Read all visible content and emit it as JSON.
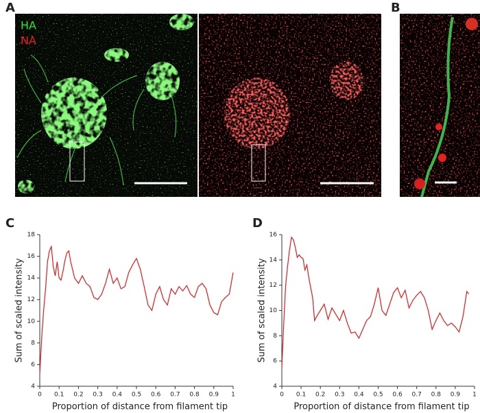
{
  "panel_labels": [
    "A",
    "B",
    "C",
    "D"
  ],
  "channel_labels": [
    "HA",
    "NA"
  ],
  "chart_data": [
    {
      "type": "line",
      "x_label": "Proportion of distance from filament tip",
      "y_label": "Sum of scaled intensity",
      "xlim": [
        0,
        1
      ],
      "ylim": [
        4,
        18
      ],
      "xticks": [
        0,
        0.1,
        0.2,
        0.3,
        0.4,
        0.5,
        0.6,
        0.7,
        0.8,
        0.9,
        1
      ],
      "yticks": [
        4,
        6,
        8,
        10,
        12,
        14,
        16,
        18
      ],
      "x": [
        0,
        0.01,
        0.02,
        0.03,
        0.04,
        0.05,
        0.06,
        0.07,
        0.08,
        0.09,
        0.1,
        0.11,
        0.12,
        0.13,
        0.14,
        0.15,
        0.16,
        0.18,
        0.2,
        0.22,
        0.24,
        0.26,
        0.28,
        0.3,
        0.32,
        0.34,
        0.36,
        0.38,
        0.4,
        0.42,
        0.44,
        0.46,
        0.48,
        0.5,
        0.52,
        0.54,
        0.56,
        0.58,
        0.6,
        0.62,
        0.64,
        0.66,
        0.68,
        0.7,
        0.72,
        0.74,
        0.76,
        0.78,
        0.8,
        0.82,
        0.84,
        0.86,
        0.88,
        0.9,
        0.92,
        0.94,
        0.96,
        0.98,
        1
      ],
      "series": [
        {
          "color": "#e31a1c",
          "values": [
            5.2,
            8.5,
            11,
            13,
            15.5,
            16.5,
            16.9,
            15,
            14.2,
            15.5,
            14,
            13.8,
            14.6,
            15.6,
            16.3,
            16.5,
            15.5,
            14,
            13.5,
            14.2,
            13.5,
            13.2,
            12.2,
            12,
            12.5,
            13.5,
            14.8,
            13.5,
            14,
            13,
            13.2,
            14.5,
            15.2,
            15.8,
            14.8,
            13.2,
            11.5,
            11,
            12.5,
            13.2,
            12,
            11.5,
            13,
            12.5,
            13.2,
            12.8,
            13.3,
            12.5,
            12.2,
            13.2,
            13.5,
            13,
            11.5,
            10.8,
            10.6,
            11.8,
            12.2,
            12.5,
            14.5
          ]
        }
      ]
    },
    {
      "type": "line",
      "x_label": "Proportion of distance from filament tip",
      "y_label": "Sum of scaled intensity",
      "xlim": [
        0,
        1
      ],
      "ylim": [
        4,
        16
      ],
      "xticks": [
        0,
        0.1,
        0.2,
        0.3,
        0.4,
        0.5,
        0.6,
        0.7,
        0.8,
        0.9,
        1
      ],
      "yticks": [
        4,
        6,
        8,
        10,
        12,
        14,
        16
      ],
      "x": [
        0,
        0.01,
        0.02,
        0.03,
        0.04,
        0.05,
        0.06,
        0.07,
        0.08,
        0.09,
        0.1,
        0.11,
        0.12,
        0.13,
        0.14,
        0.16,
        0.17,
        0.18,
        0.2,
        0.22,
        0.24,
        0.26,
        0.28,
        0.3,
        0.32,
        0.34,
        0.36,
        0.38,
        0.4,
        0.42,
        0.44,
        0.46,
        0.48,
        0.5,
        0.52,
        0.54,
        0.56,
        0.58,
        0.6,
        0.62,
        0.64,
        0.66,
        0.68,
        0.7,
        0.72,
        0.74,
        0.76,
        0.78,
        0.8,
        0.82,
        0.84,
        0.86,
        0.88,
        0.9,
        0.92,
        0.94,
        0.96,
        0.97
      ],
      "series": [
        {
          "color": "#e31a1c",
          "values": [
            5.5,
            9,
            12,
            13.5,
            14.8,
            15.8,
            15.6,
            15,
            14.2,
            14.4,
            14.2,
            14.1,
            13.2,
            13.6,
            12.6,
            11,
            9.2,
            9.5,
            10,
            10.5,
            9.3,
            10.2,
            9.7,
            9.2,
            10,
            9,
            8.2,
            8.3,
            7.8,
            8.5,
            9.2,
            9.5,
            10.5,
            11.8,
            10,
            9.6,
            10.5,
            11.4,
            11.8,
            11,
            11.6,
            10.2,
            10.8,
            11.2,
            11.5,
            11,
            10,
            8.5,
            9.2,
            9.8,
            9.2,
            8.8,
            9,
            8.7,
            8.3,
            9.5,
            11.5,
            11.3
          ]
        }
      ]
    }
  ]
}
